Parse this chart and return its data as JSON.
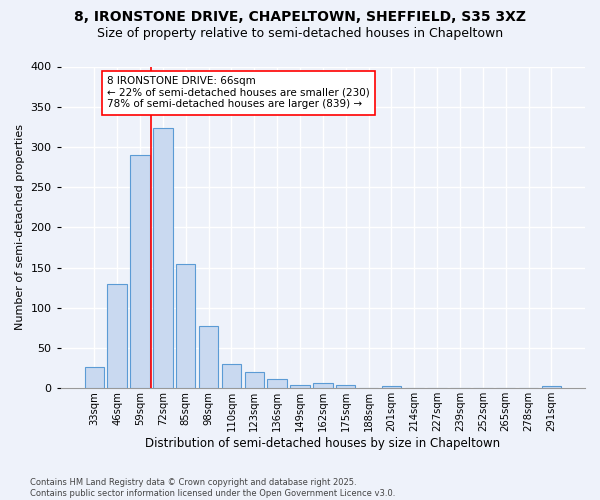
{
  "title1": "8, IRONSTONE DRIVE, CHAPELTOWN, SHEFFIELD, S35 3XZ",
  "title2": "Size of property relative to semi-detached houses in Chapeltown",
  "xlabel": "Distribution of semi-detached houses by size in Chapeltown",
  "ylabel": "Number of semi-detached properties",
  "bar_color": "#c9d9f0",
  "bar_edge_color": "#5b9bd5",
  "categories": [
    "33sqm",
    "46sqm",
    "59sqm",
    "72sqm",
    "85sqm",
    "98sqm",
    "110sqm",
    "123sqm",
    "136sqm",
    "149sqm",
    "162sqm",
    "175sqm",
    "188sqm",
    "201sqm",
    "214sqm",
    "227sqm",
    "239sqm",
    "252sqm",
    "265sqm",
    "278sqm",
    "291sqm"
  ],
  "values": [
    27,
    130,
    290,
    323,
    155,
    77,
    30,
    20,
    12,
    4,
    6,
    4,
    0,
    3,
    0,
    0,
    0,
    0,
    0,
    0,
    3
  ],
  "property_label": "8 IRONSTONE DRIVE: 66sqm",
  "pct_smaller": 22,
  "n_smaller": 230,
  "pct_larger": 78,
  "n_larger": 839,
  "footer": "Contains HM Land Registry data © Crown copyright and database right 2025.\nContains public sector information licensed under the Open Government Licence v3.0.",
  "ylim": [
    0,
    400
  ],
  "yticks": [
    0,
    50,
    100,
    150,
    200,
    250,
    300,
    350,
    400
  ],
  "background_color": "#eef2fa",
  "grid_color": "#ffffff",
  "title_fontsize": 10,
  "subtitle_fontsize": 9
}
